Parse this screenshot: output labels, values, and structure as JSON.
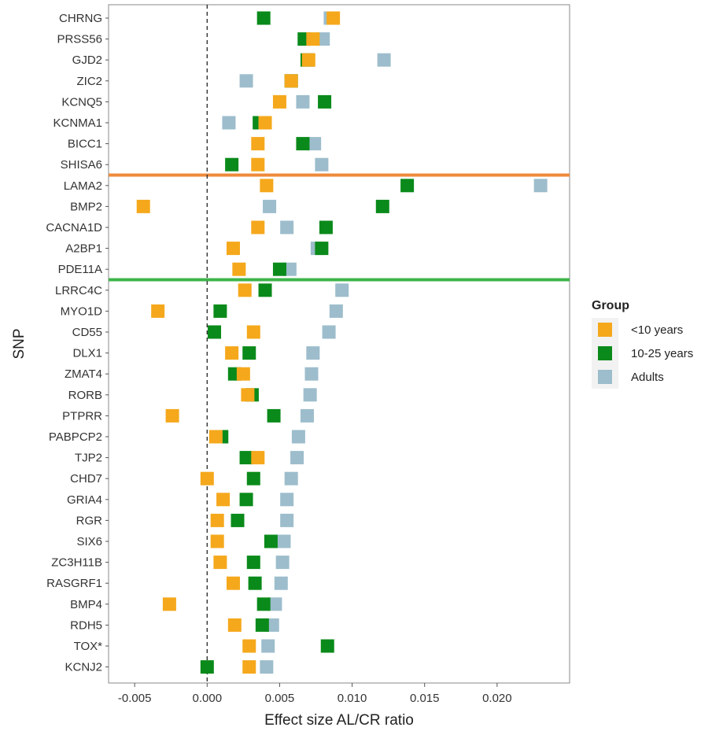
{
  "chart_data": {
    "type": "scatter",
    "xlabel": "Effect size AL/CR ratio",
    "ylabel": "SNP",
    "xlim": [
      -0.0068,
      0.025
    ],
    "xticks": [
      "-0.005",
      "0.000",
      "0.005",
      "0.010",
      "0.015",
      "0.020"
    ],
    "xtick_values": [
      -0.005,
      0.0,
      0.005,
      0.01,
      0.015,
      0.02
    ],
    "reference_line": {
      "x": 0,
      "style": "dashed"
    },
    "grid": false,
    "legend": {
      "title": "Group",
      "position": "right"
    },
    "separators": [
      {
        "after": "SHISA6",
        "color": "#ee8a3a"
      },
      {
        "after": "PDE11A",
        "color": "#3db54a"
      }
    ],
    "categories": [
      "CHRNG",
      "PRSS56",
      "GJD2",
      "ZIC2",
      "KCNQ5",
      "KCNMA1",
      "BICC1",
      "SHISA6",
      "LAMA2",
      "BMP2",
      "CACNA1D",
      "A2BP1",
      "PDE11A",
      "LRRC4C",
      "MYO1D",
      "CD55",
      "DLX1",
      "ZMAT4",
      "RORB",
      "PTPRR",
      "PABPCP2",
      "TJP2",
      "CHD7",
      "GRIA4",
      "RGR",
      "SIX6",
      "ZC3H11B",
      "RASGRF1",
      "BMP4",
      "RDH5",
      "TOX*",
      "KCNJ2"
    ],
    "series": [
      {
        "name": "Adults",
        "color": "#9dbdcc",
        "values": [
          0.0085,
          0.008,
          0.0122,
          0.0027,
          0.0066,
          0.0015,
          0.0074,
          0.0079,
          0.023,
          0.0043,
          0.0055,
          0.0076,
          0.0057,
          0.0093,
          0.0089,
          0.0084,
          0.0073,
          0.0072,
          0.0071,
          0.0069,
          0.0063,
          0.0062,
          0.0058,
          0.0055,
          0.0055,
          0.0053,
          0.0052,
          0.0051,
          0.0047,
          0.0045,
          0.0042,
          0.0041
        ]
      },
      {
        "name": "10-25 years",
        "color": "#0a8a1a",
        "values": [
          0.0039,
          0.0067,
          0.0069,
          0.0058,
          0.0081,
          0.0036,
          0.0066,
          0.0017,
          0.0138,
          0.0121,
          0.0082,
          0.0079,
          0.005,
          0.004,
          0.0009,
          0.0005,
          0.0029,
          0.0019,
          0.0031,
          0.0046,
          0.001,
          0.0027,
          0.0032,
          0.0027,
          0.0021,
          0.0044,
          0.0032,
          0.0033,
          0.0039,
          0.0038,
          0.0083,
          0.0
        ]
      },
      {
        "name": "<10 years",
        "color": "#f5a81c",
        "values": [
          0.0087,
          0.0073,
          0.007,
          0.0058,
          0.005,
          0.004,
          0.0035,
          0.0035,
          0.0041,
          -0.0044,
          0.0035,
          0.0018,
          0.0022,
          0.0026,
          -0.0034,
          0.0032,
          0.0017,
          0.0025,
          0.0028,
          -0.0024,
          0.0006,
          0.0035,
          0.0,
          0.0011,
          0.0007,
          0.0007,
          0.0009,
          0.0018,
          -0.0026,
          0.0019,
          0.0029,
          0.0029
        ]
      }
    ]
  }
}
